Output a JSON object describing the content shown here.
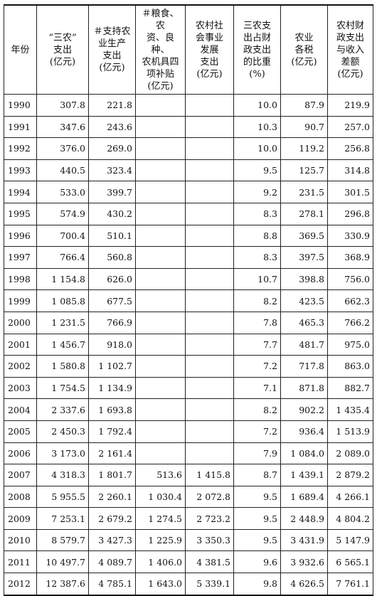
{
  "table": {
    "headers": [
      "年份",
      "“三农”\n支出\n(亿元)",
      "＃支持农\n业生产\n支出\n(亿元)",
      "＃粮食、农\n资、良种、\n农机具四\n项补贴\n(亿元)",
      "农村社\n会事业\n发展\n支出\n(亿元)",
      "三农支\n出占财\n政支出\n的比重\n(%)",
      "农业\n各税\n(亿元)",
      "农村财\n政支出\n与收入\n差额\n(亿元)"
    ],
    "rows": [
      [
        "1990",
        "307.8",
        "221.8",
        "",
        "",
        "10.0",
        "87.9",
        "219.9"
      ],
      [
        "1991",
        "347.6",
        "243.6",
        "",
        "",
        "10.3",
        "90.7",
        "257.0"
      ],
      [
        "1992",
        "376.0",
        "269.0",
        "",
        "",
        "10.0",
        "119.2",
        "256.8"
      ],
      [
        "1993",
        "440.5",
        "323.4",
        "",
        "",
        "9.5",
        "125.7",
        "314.8"
      ],
      [
        "1994",
        "533.0",
        "399.7",
        "",
        "",
        "9.2",
        "231.5",
        "301.5"
      ],
      [
        "1995",
        "574.9",
        "430.2",
        "",
        "",
        "8.3",
        "278.1",
        "296.8"
      ],
      [
        "1996",
        "700.4",
        "510.1",
        "",
        "",
        "8.8",
        "369.5",
        "330.9"
      ],
      [
        "1997",
        "766.4",
        "560.8",
        "",
        "",
        "8.3",
        "397.5",
        "368.9"
      ],
      [
        "1998",
        "1 154.8",
        "626.0",
        "",
        "",
        "10.7",
        "398.8",
        "756.0"
      ],
      [
        "1999",
        "1 085.8",
        "677.5",
        "",
        "",
        "8.2",
        "423.5",
        "662.3"
      ],
      [
        "2000",
        "1 231.5",
        "766.9",
        "",
        "",
        "7.8",
        "465.3",
        "766.2"
      ],
      [
        "2001",
        "1 456.7",
        "918.0",
        "",
        "",
        "7.7",
        "481.7",
        "975.0"
      ],
      [
        "2002",
        "1 580.8",
        "1 102.7",
        "",
        "",
        "7.2",
        "717.8",
        "863.0"
      ],
      [
        "2003",
        "1 754.5",
        "1 134.9",
        "",
        "",
        "7.1",
        "871.8",
        "882.7"
      ],
      [
        "2004",
        "2 337.6",
        "1 693.8",
        "",
        "",
        "8.2",
        "902.2",
        "1 435.4"
      ],
      [
        "2005",
        "2 450.3",
        "1 792.4",
        "",
        "",
        "7.2",
        "936.4",
        "1 513.9"
      ],
      [
        "2006",
        "3 173.0",
        "2 161.4",
        "",
        "",
        "7.9",
        "1 084.0",
        "2 089.0"
      ],
      [
        "2007",
        "4 318.3",
        "1 801.7",
        "513.6",
        "1 415.8",
        "8.7",
        "1 439.1",
        "2 879.2"
      ],
      [
        "2008",
        "5 955.5",
        "2 260.1",
        "1 030.4",
        "2 072.8",
        "9.5",
        "1 689.4",
        "4 266.1"
      ],
      [
        "2009",
        "7 253.1",
        "2 679.2",
        "1 274.5",
        "2 723.2",
        "9.5",
        "2 448.9",
        "4 804.2"
      ],
      [
        "2010",
        "8 579.7",
        "3 427.3",
        "1 225.9",
        "3 350.3",
        "9.5",
        "3 431.9",
        "5 147.9"
      ],
      [
        "2011",
        "10 497.7",
        "4 089.7",
        "1 406.0",
        "4 381.5",
        "9.6",
        "3 932.6",
        "6 565.1"
      ],
      [
        "2012",
        "12 387.6",
        "4 785.1",
        "1 643.0",
        "5 339.1",
        "9.8",
        "4 626.5",
        "7 761.1"
      ]
    ]
  }
}
